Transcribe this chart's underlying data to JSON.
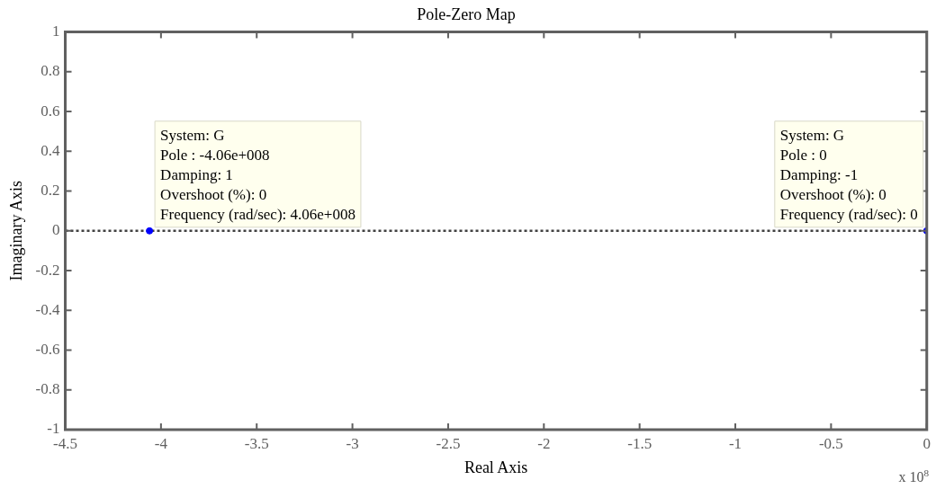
{
  "chart_data": {
    "type": "scatter",
    "title": "Pole-Zero Map",
    "xlabel": "Real Axis",
    "ylabel": "Imaginary Axis",
    "x": [
      -4.06,
      0
    ],
    "values": [
      0,
      0
    ],
    "color": "#0000ff",
    "marker": "circle",
    "xlim": [
      -4.5,
      0
    ],
    "xticks": [
      -4.5,
      -4,
      -3.5,
      -3,
      -2.5,
      -2,
      -1.5,
      -1,
      -0.5,
      0
    ],
    "ylim": [
      -1,
      1
    ],
    "yticks": [
      -1,
      -0.8,
      -0.6,
      -0.4,
      -0.2,
      0,
      0.2,
      0.4,
      0.6,
      0.8,
      1
    ],
    "ref_lines": [
      {
        "axis": "y",
        "value": 0,
        "color": "#404040",
        "line_style": "dotted"
      }
    ],
    "annotations": [
      {
        "text": "System: G\nPole : -4.06e+008\nDamping: 1\nOvershoot (%): 0\nFrequency (rad/sec): 4.06e+008",
        "x": -4.06,
        "y": 0
      },
      {
        "text": "System: G\nPole : 0\nDamping: -1\nOvershoot (%): 0\nFrequency (rad/sec): 0",
        "x": 0,
        "y": 0
      },
      "x 10$^{8}$"
    ]
  }
}
